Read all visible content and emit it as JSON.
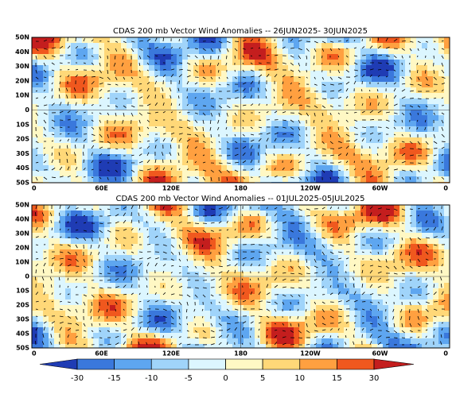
{
  "panels": [
    {
      "title": "CDAS 200 mb Vector Wind Anomalies -- 26JUN2025- 30JUN2025",
      "lat_labels": [
        "50N",
        "40N",
        "30N",
        "20N",
        "10N",
        "0",
        "10S",
        "20S",
        "30S",
        "40S",
        "50S"
      ],
      "lon_labels": [
        "0",
        "60E",
        "120E",
        "180",
        "120W",
        "60W",
        "0"
      ]
    },
    {
      "title": "CDAS 200 mb Vector Wind Anomalies -- 01JUL2025-05JUL2025",
      "lat_labels": [
        "50N",
        "40N",
        "30N",
        "20N",
        "10N",
        "0",
        "10S",
        "20S",
        "30S",
        "40S",
        "50S"
      ],
      "lon_labels": [
        "0",
        "60E",
        "120E",
        "180",
        "120W",
        "60W",
        "0"
      ]
    }
  ],
  "colorbar": {
    "ticks": [
      -30,
      -15,
      -10,
      -5,
      0,
      5,
      10,
      15,
      30
    ],
    "colors": [
      "#1f3cb4",
      "#3a78dc",
      "#5ea6f0",
      "#a0d4fa",
      "#dcf6ff",
      "#fff8c4",
      "#ffd878",
      "#ffa040",
      "#f0581e",
      "#c41e1e"
    ]
  }
}
